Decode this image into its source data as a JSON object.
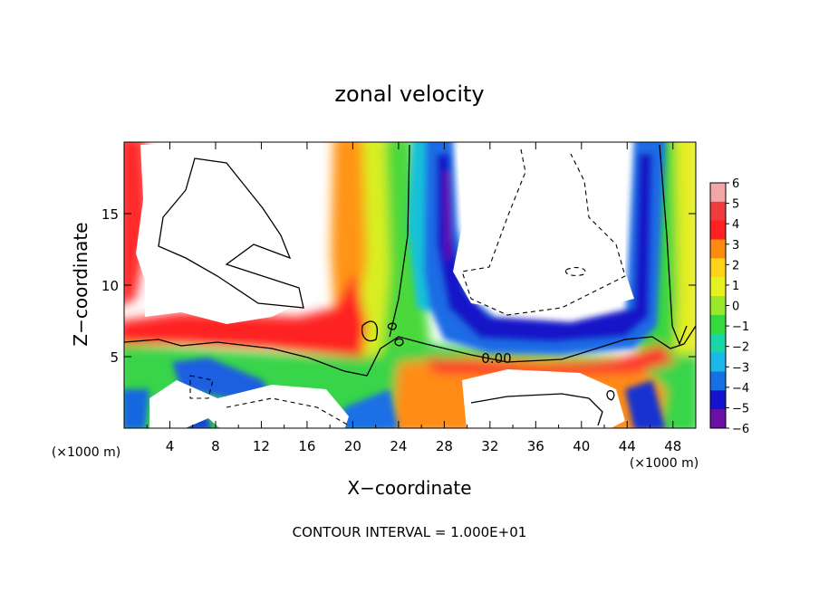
{
  "chart_data": {
    "type": "heatmap",
    "title": "zonal velocity",
    "xlabel": "X−coordinate",
    "ylabel": "Z−coordinate",
    "x_unit_label": "(×1000 m)",
    "y_unit_label": "(×1000 m)",
    "xlim": [
      0,
      50
    ],
    "ylim": [
      0,
      20
    ],
    "x_ticks": [
      "4",
      "8",
      "12",
      "16",
      "20",
      "24",
      "28",
      "32",
      "36",
      "40",
      "44",
      "48"
    ],
    "y_ticks": [
      "5",
      "10",
      "15"
    ],
    "colorbar": {
      "range": [
        -6,
        6
      ],
      "ticks": [
        "6",
        "5",
        "4",
        "3",
        "2",
        "1",
        "0",
        "−1",
        "−2",
        "−3",
        "−4",
        "−5",
        "−6"
      ],
      "colors": [
        "#f4a6a6",
        "#f03c3c",
        "#ff2020",
        "#ff8a10",
        "#ffd21a",
        "#e6f21e",
        "#9ae82a",
        "#34d93c",
        "#18d6a8",
        "#18b8e8",
        "#1670e6",
        "#1414d0",
        "#6a0fa8"
      ]
    },
    "contour_label": "0.00",
    "contour_interval_text": "CONTOUR INTERVAL = 1.000E+01"
  }
}
